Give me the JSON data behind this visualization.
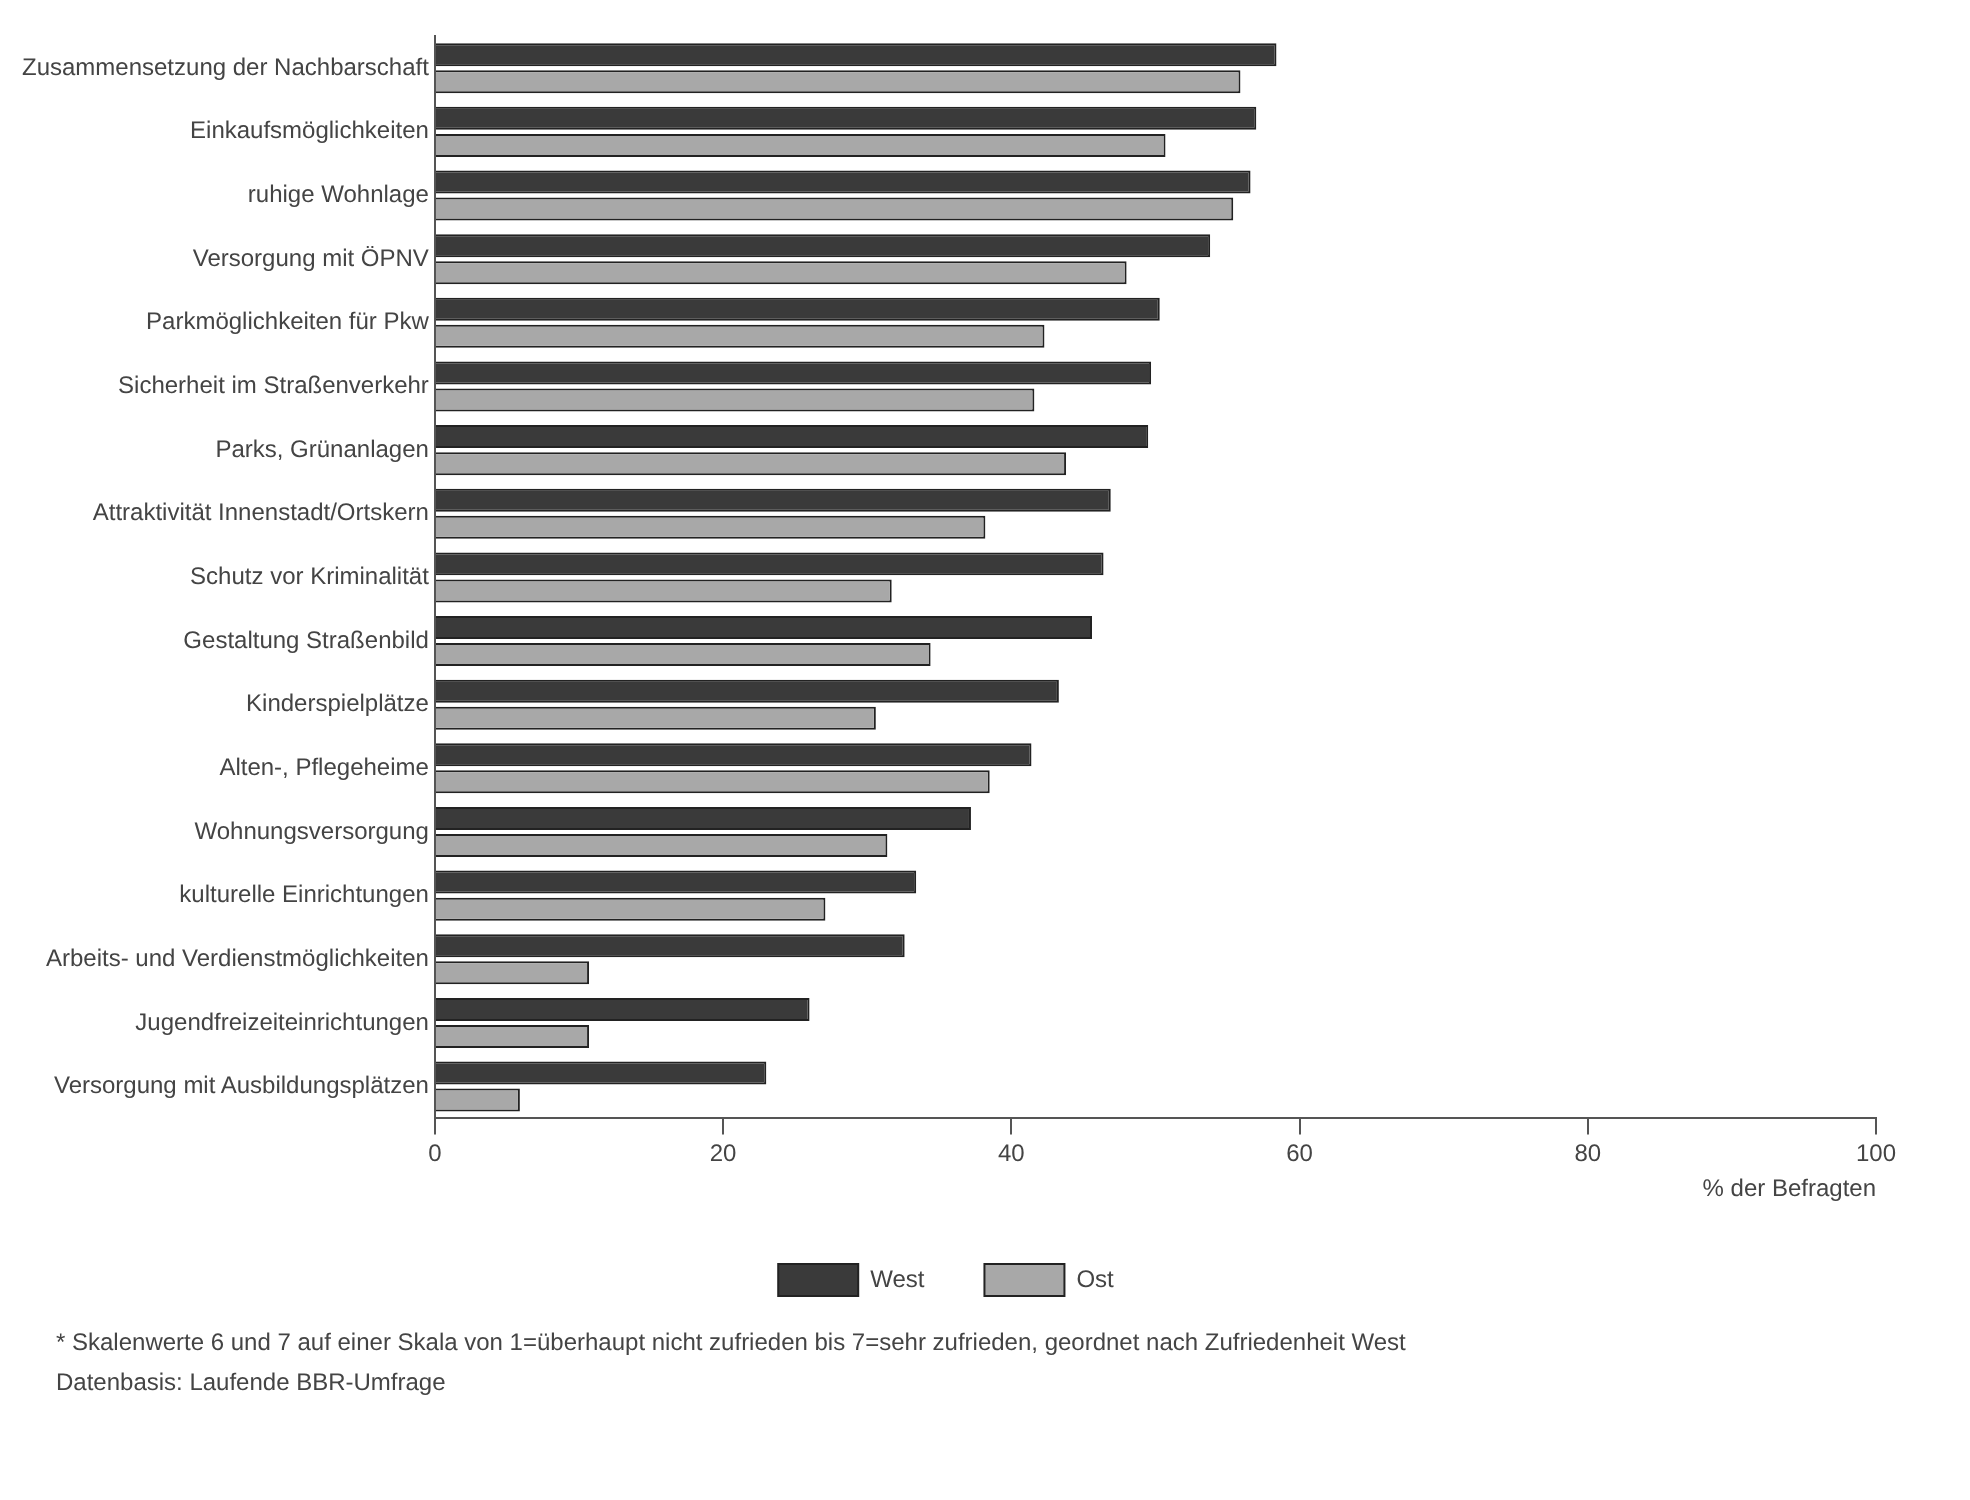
{
  "chart_data": {
    "type": "bar",
    "orientation": "horizontal",
    "xlabel": "% der Befragten",
    "categories": [
      "Zusammensetzung der Nachbarschaft",
      "Einkaufsmöglichkeiten",
      "ruhige Wohnlage",
      "Versorgung mit ÖPNV",
      "Parkmöglichkeiten für Pkw",
      "Sicherheit im Straßenverkehr",
      "Parks, Grünanlagen",
      "Attraktivität Innenstadt/Ortskern",
      "Schutz vor Kriminalität",
      "Gestaltung Straßenbild",
      "Kinderspielplätze",
      "Alten-, Pflegeheime",
      "Wohnungsversorgung",
      "kulturelle Einrichtungen",
      "Arbeits- und Verdienstmöglichkeiten",
      "Jugendfreizeiteinrichtungen",
      "Versorgung mit Ausbildungsplätzen"
    ],
    "series": [
      {
        "name": "West",
        "color": "#3a3a3a",
        "values": [
          58.4,
          57,
          56.6,
          53.8,
          50.3,
          49.7,
          49.5,
          46.9,
          46.4,
          45.6,
          43.3,
          41.4,
          37.2,
          33.4,
          32.6,
          26,
          23
        ]
      },
      {
        "name": "Ost",
        "color": "#a8a8a8",
        "values": [
          55.9,
          50.7,
          55.4,
          48,
          42.3,
          41.6,
          43.8,
          38.2,
          31.7,
          34.4,
          30.6,
          38.5,
          31.4,
          27.1,
          10.7,
          10.7,
          5.9
        ]
      }
    ],
    "xlim": [
      0,
      100
    ],
    "xticks": [
      0,
      20,
      40,
      60,
      80,
      100
    ],
    "grid": false,
    "legend": "bottom",
    "annotations": [
      "* Skalenwerte 6 und 7 auf einer Skala von 1=überhaupt nicht zufrieden bis 7=sehr zufrieden, geordnet nach Zufriedenheit West",
      "Datenbasis: Laufende BBR-Umfrage"
    ]
  }
}
